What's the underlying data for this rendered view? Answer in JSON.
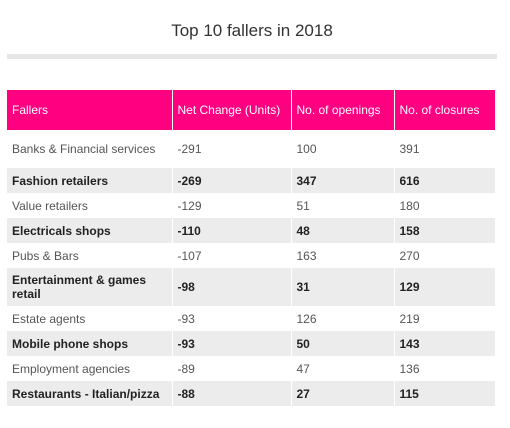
{
  "chart_data": {
    "type": "table",
    "title": "Top 10 fallers in 2018",
    "columns": [
      "Fallers",
      "Net Change (Units)",
      "No. of openings",
      "No. of closures"
    ],
    "rows": [
      [
        "Banks & Financial services",
        "-291",
        "100",
        "391"
      ],
      [
        "Fashion retailers",
        "-269",
        "347",
        "616"
      ],
      [
        "Value retailers",
        "-129",
        "51",
        "180"
      ],
      [
        "Electricals shops",
        "-110",
        "48",
        "158"
      ],
      [
        "Pubs & Bars",
        "-107",
        "163",
        "270"
      ],
      [
        "Entertainment & games retail",
        "-98",
        "31",
        "129"
      ],
      [
        "Estate agents",
        "-93",
        "126",
        "219"
      ],
      [
        "Mobile phone shops",
        "-93",
        "50",
        "143"
      ],
      [
        "Employment agencies",
        "-89",
        "47",
        "136"
      ],
      [
        "Restaurants - Italian/pizza",
        "-88",
        "27",
        "115"
      ]
    ],
    "colors": {
      "header_background": "#ff0080",
      "header_text": "#ffffff",
      "alternate_row_background": "#ececec"
    }
  }
}
